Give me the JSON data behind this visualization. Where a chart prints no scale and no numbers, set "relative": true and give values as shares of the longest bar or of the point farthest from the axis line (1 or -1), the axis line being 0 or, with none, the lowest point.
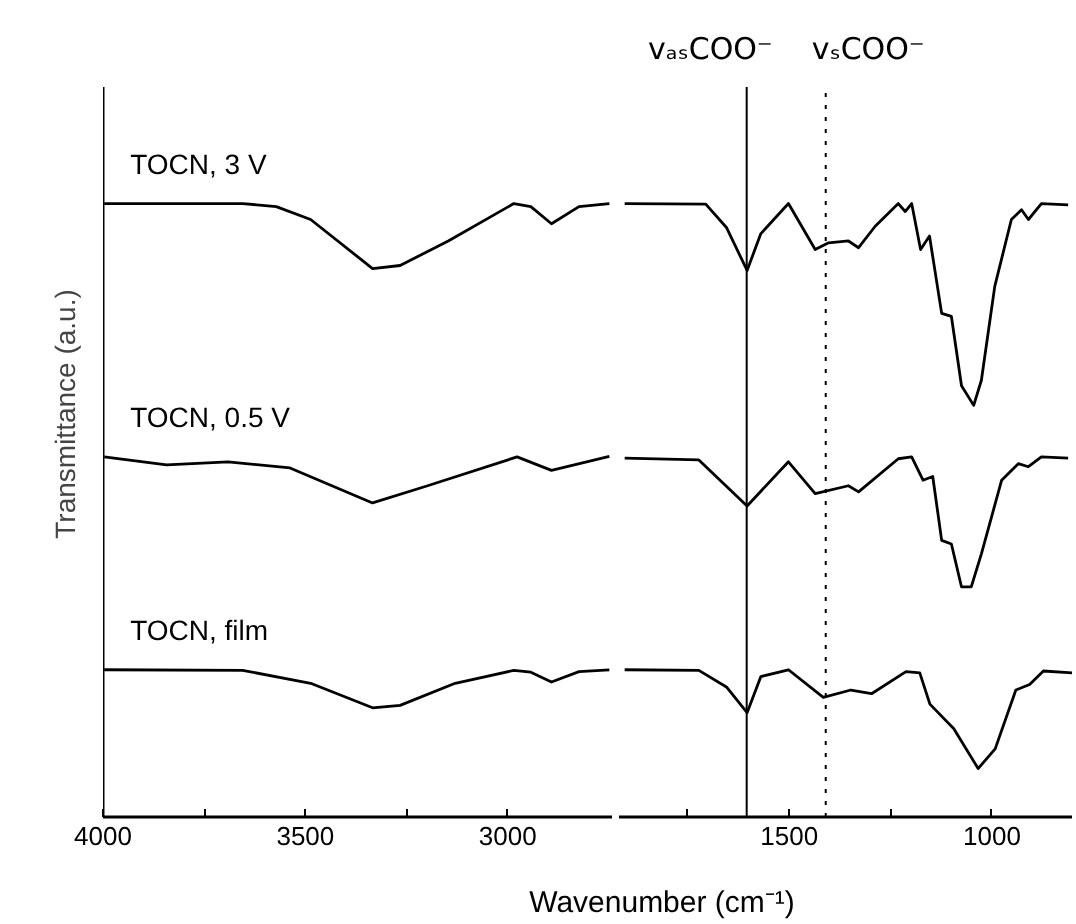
{
  "chart_data": [
    {
      "type": "line",
      "relative": true,
      "ylabel": "Transmittance (a.u.)",
      "xlabel": "Wavenumber (cm⁻¹)",
      "xlim": [
        4000,
        2740
      ],
      "xticks": [
        4000,
        {
          "value": 3750,
          "label": null
        },
        3500,
        {
          "value": 3250,
          "label": null
        },
        3000
      ],
      "series": [
        {
          "name": "TOCN, 3 V",
          "color": "#000000",
          "x": [
            3997,
            3655,
            3572,
            3487,
            3334,
            3266,
            3147,
            2985,
            2943,
            2892,
            2824,
            2749
          ],
          "values": [
            1.0,
            1.0,
            0.995,
            0.974,
            0.894,
            0.899,
            0.939,
            1.0,
            0.995,
            0.967,
            0.995,
            1.0
          ]
        },
        {
          "name": "TOCN, 0.5 V",
          "color": "#000000",
          "x": [
            3997,
            3843,
            3691,
            3538,
            3334,
            3198,
            2977,
            2892,
            2749
          ],
          "values": [
            0.587,
            0.574,
            0.579,
            0.569,
            0.512,
            0.54,
            0.587,
            0.565,
            0.588
          ]
        },
        {
          "name": "TOCN, film",
          "color": "#000000",
          "x": [
            3997,
            3655,
            3487,
            3334,
            3266,
            3130,
            2985,
            2943,
            2892,
            2824,
            2749
          ],
          "values": [
            0.24,
            0.239,
            0.218,
            0.178,
            0.182,
            0.218,
            0.239,
            0.236,
            0.22,
            0.237,
            0.24
          ]
        }
      ]
    },
    {
      "type": "line",
      "relative": true,
      "xlim": [
        1920,
        800
      ],
      "xticks": [
        {
          "value": 1750,
          "label": null
        },
        1500,
        {
          "value": 1250,
          "label": null
        },
        1000
      ],
      "ref_lines": [
        {
          "axis": "x",
          "value": 1605,
          "label": "vₐₛCOO⁻",
          "line_style": "solid"
        },
        {
          "axis": "x",
          "value": 1410,
          "label": "vₛCOO⁻",
          "line_style": "dotted"
        }
      ],
      "series": [
        {
          "color": "#000000",
          "x": [
            1906,
            1706,
            1655,
            1604,
            1570,
            1502,
            1436,
            1403,
            1354,
            1329,
            1288,
            1231,
            1214,
            1198,
            1176,
            1154,
            1124,
            1100,
            1075,
            1045,
            1026,
            993,
            952,
            927,
            910,
            878,
            812
          ],
          "values": [
            1.0,
            0.999,
            0.961,
            0.891,
            0.951,
            1.0,
            0.925,
            0.936,
            0.939,
            0.928,
            0.963,
            1.0,
            0.987,
            1.0,
            0.925,
            0.947,
            0.821,
            0.816,
            0.703,
            0.671,
            0.712,
            0.865,
            0.974,
            0.99,
            0.974,
            1.0,
            0.998
          ]
        },
        {
          "color": "#000000",
          "x": [
            1906,
            1723,
            1604,
            1502,
            1436,
            1354,
            1329,
            1231,
            1198,
            1170,
            1146,
            1124,
            1100,
            1075,
            1051,
            1026,
            976,
            935,
            910,
            878,
            812
          ],
          "values": [
            0.585,
            0.582,
            0.507,
            0.579,
            0.527,
            0.54,
            0.53,
            0.584,
            0.587,
            0.549,
            0.555,
            0.451,
            0.445,
            0.375,
            0.375,
            0.429,
            0.549,
            0.576,
            0.571,
            0.587,
            0.585
          ]
        },
        {
          "color": "#000000",
          "x": [
            1906,
            1723,
            1655,
            1604,
            1570,
            1502,
            1416,
            1348,
            1297,
            1212,
            1178,
            1153,
            1094,
            1034,
            992,
            941,
            907,
            873,
            802
          ],
          "values": [
            0.24,
            0.239,
            0.212,
            0.17,
            0.229,
            0.24,
            0.195,
            0.207,
            0.201,
            0.237,
            0.235,
            0.184,
            0.144,
            0.079,
            0.111,
            0.207,
            0.216,
            0.238,
            0.235
          ]
        }
      ]
    }
  ]
}
